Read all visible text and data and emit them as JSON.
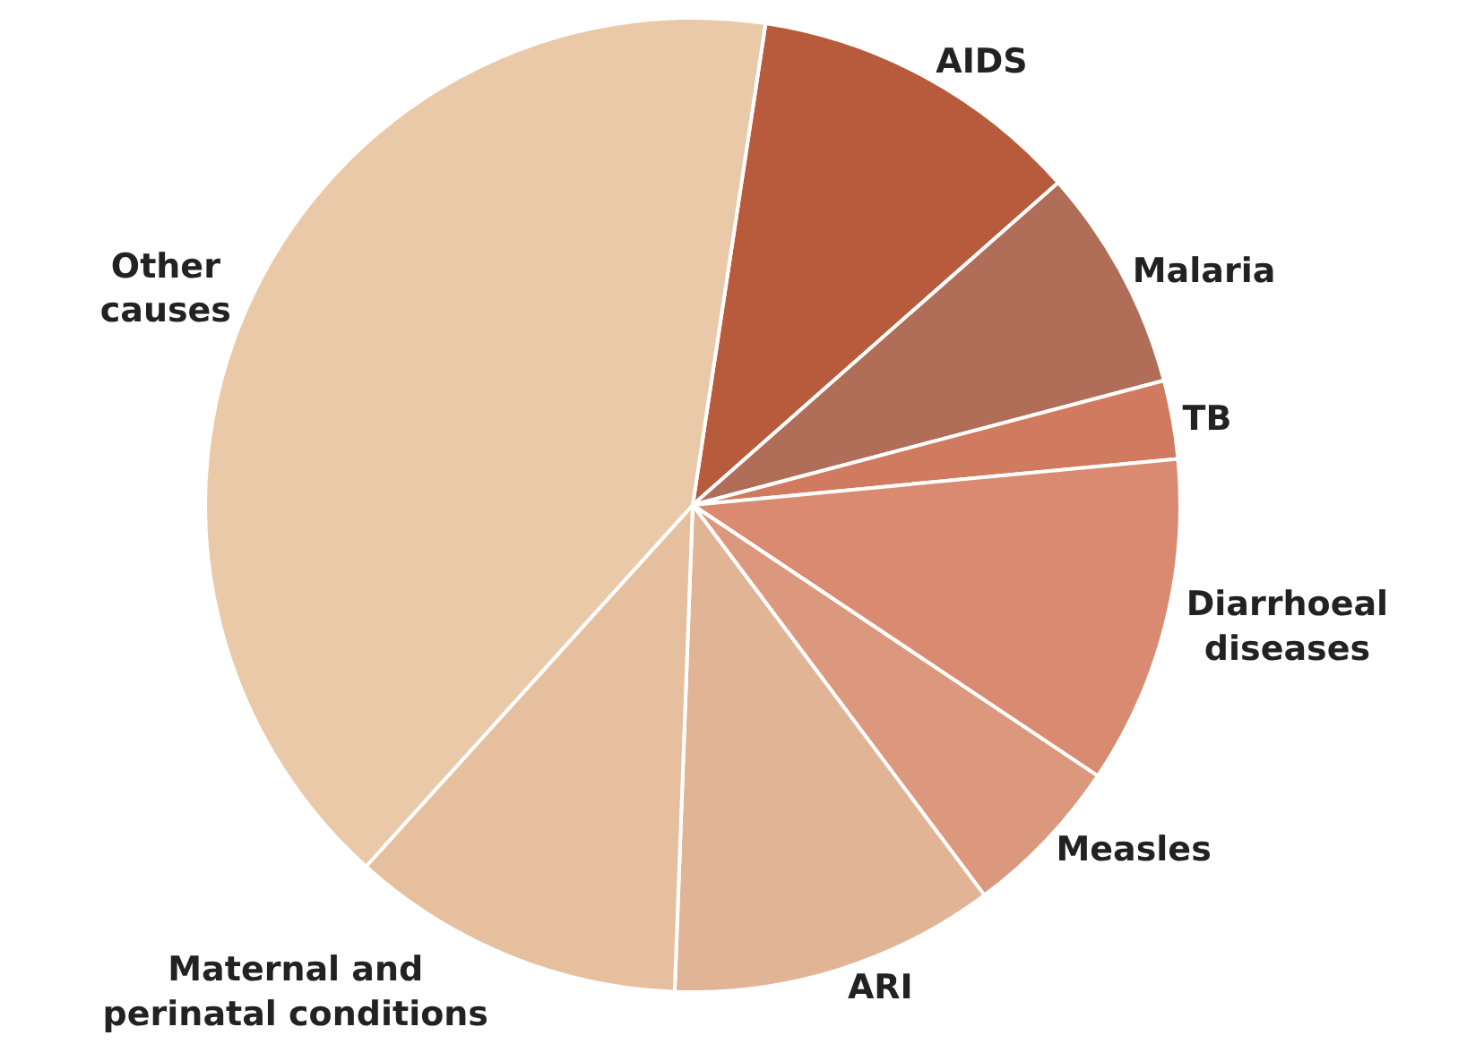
{
  "chart_data": {
    "type": "pie",
    "categories": [
      "AIDS",
      "Malaria",
      "TB",
      "Diarrhoeal diseases",
      "Measles",
      "ARI",
      "Maternal and perinatal conditions",
      "Other causes"
    ],
    "values": [
      11.1,
      7.4,
      2.6,
      10.9,
      5.4,
      10.8,
      11.1,
      40.7
    ],
    "colors": [
      "#b85a3c",
      "#b06e58",
      "#d07a60",
      "#d98a70",
      "#dc987c",
      "#e2b496",
      "#e6c09e",
      "#eac9a9"
    ],
    "legend": false
  }
}
